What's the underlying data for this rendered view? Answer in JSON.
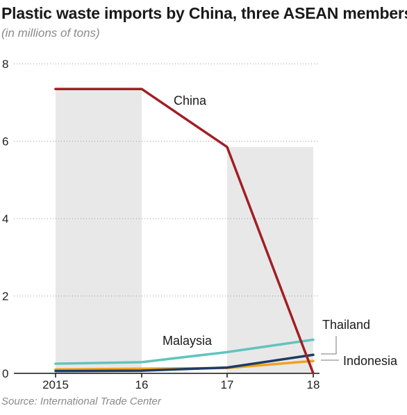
{
  "header": {
    "title": "Plastic waste imports by China, three ASEAN members",
    "subtitle": "(in millions of tons)"
  },
  "footer": {
    "source": "Source: International Trade Center"
  },
  "chart_data": {
    "type": "line",
    "title": "Plastic waste imports by China, three ASEAN members",
    "subtitle": "(in millions of tons)",
    "xlabel": "",
    "ylabel": "",
    "x": [
      2015,
      2016,
      2017,
      2018
    ],
    "x_tick_labels": [
      "2015",
      "16",
      "17",
      "18"
    ],
    "y_ticks": [
      0,
      2,
      4,
      6,
      8
    ],
    "y_tick_labels": [
      "0",
      "2",
      "4",
      "6",
      "8"
    ],
    "ylim": [
      0,
      8
    ],
    "grid": "horizontal dotted",
    "shaded_periods": [
      [
        2015,
        2016
      ],
      [
        2017,
        2018
      ]
    ],
    "shade_color": "#e8e8e8",
    "series": [
      {
        "name": "China",
        "values": [
          7.35,
          7.35,
          5.85,
          0.0
        ],
        "color": "#a01f24"
      },
      {
        "name": "Malaysia",
        "values": [
          0.25,
          0.29,
          0.55,
          0.87
        ],
        "color": "#62c3bd"
      },
      {
        "name": "Thailand",
        "values": [
          0.06,
          0.07,
          0.15,
          0.48
        ],
        "color": "#1f3b63"
      },
      {
        "name": "Indonesia",
        "values": [
          0.1,
          0.12,
          0.14,
          0.32
        ],
        "color": "#f0a21e"
      }
    ]
  }
}
